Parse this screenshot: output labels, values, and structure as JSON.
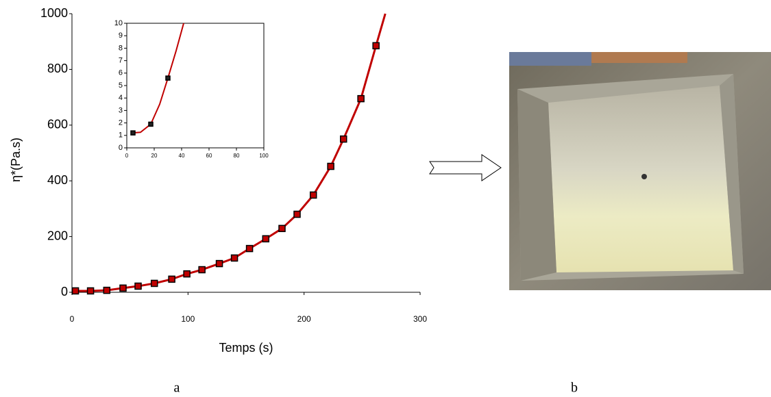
{
  "chart_data": [
    {
      "type": "line",
      "x_label": "Temps (s)",
      "y_label": "η*(Pa.s)",
      "xlim": [
        0,
        300
      ],
      "xticks": [
        0,
        100,
        200,
        300
      ],
      "ylim": [
        0,
        1000
      ],
      "yticks": [
        0,
        200,
        400,
        600,
        800,
        1000
      ],
      "series": [
        {
          "style": "line",
          "color": "#c00000",
          "x": [
            3,
            16,
            30,
            44,
            57,
            71,
            86,
            99,
            112,
            127,
            140,
            153,
            167,
            181,
            194,
            208,
            223,
            234,
            249,
            262,
            270
          ],
          "values": [
            5,
            5,
            7,
            15,
            22,
            32,
            47,
            66,
            81,
            103,
            123,
            157,
            192,
            229,
            280,
            349,
            452,
            550,
            695,
            885,
            1000
          ]
        },
        {
          "style": "marker",
          "color": "#c00000",
          "x": [
            3,
            16,
            30,
            44,
            57,
            71,
            86,
            99,
            112,
            127,
            140,
            153,
            167,
            181,
            194,
            208,
            223,
            234,
            249,
            262
          ],
          "values": [
            5,
            5,
            7,
            15,
            22,
            32,
            47,
            66,
            81,
            103,
            123,
            157,
            192,
            229,
            280,
            349,
            452,
            550,
            695,
            885
          ]
        }
      ]
    },
    {
      "type": "line",
      "xlim": [
        0,
        100
      ],
      "xticks": [
        0,
        20,
        40,
        60,
        80,
        100
      ],
      "ylim": [
        0,
        10
      ],
      "yticks": [
        0,
        1,
        2,
        3,
        4,
        5,
        6,
        7,
        8,
        9,
        10
      ],
      "frame": true,
      "series": [
        {
          "style": "line",
          "color": "#c00000",
          "x": [
            4.5,
            10,
            17.5,
            24,
            30,
            36,
            41.5
          ],
          "values": [
            1.2,
            1.25,
            1.9,
            3.5,
            5.6,
            7.8,
            10
          ]
        },
        {
          "style": "marker",
          "color": "#222222",
          "x": [
            4.5,
            17.5,
            30
          ],
          "values": [
            1.2,
            1.9,
            5.6
          ]
        }
      ]
    }
  ],
  "panel_labels": [
    "a",
    "b"
  ]
}
